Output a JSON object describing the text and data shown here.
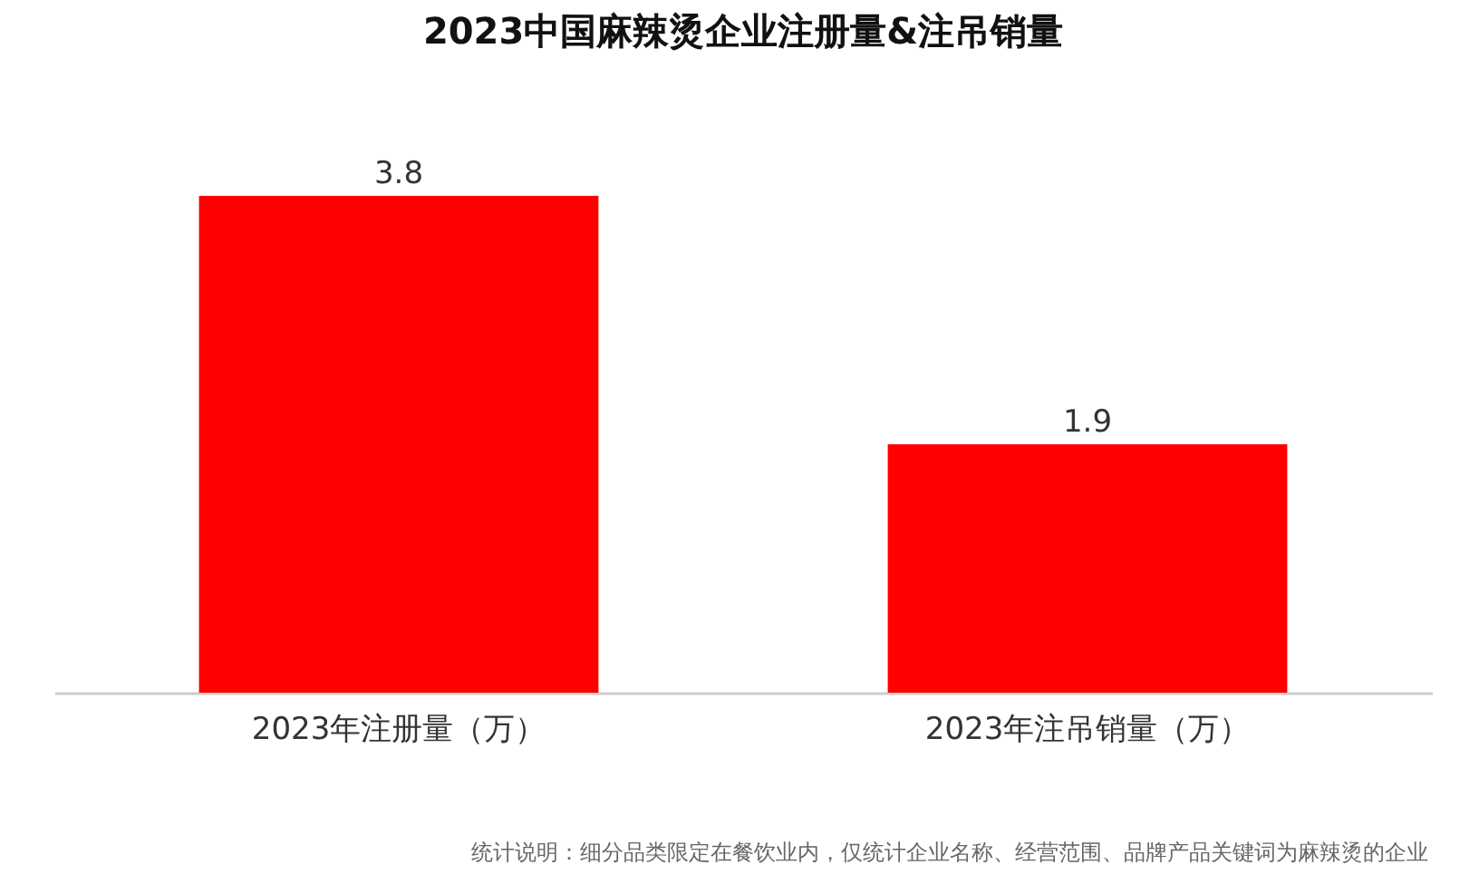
{
  "chart_data": {
    "type": "bar",
    "title": "2023中国麻辣烫企业注册量&注吊销量",
    "categories": [
      "2023年注册量（万）",
      "2023年注吊销量（万）"
    ],
    "values": [
      3.8,
      1.9
    ],
    "color": "#ff0000",
    "data_labels": true,
    "annotations": [
      "统计说明：细分品类限定在餐饮业内，仅统计企业名称、经营范围、品牌产品关键词为麻辣烫的企业"
    ]
  }
}
